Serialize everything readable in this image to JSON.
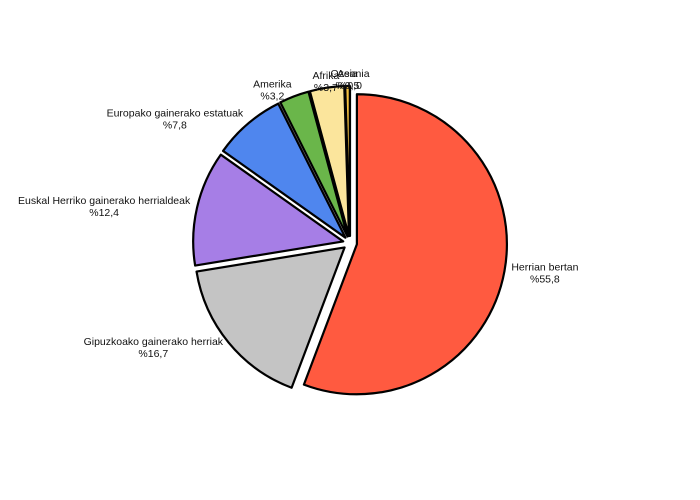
{
  "chart_data": {
    "type": "pie",
    "title": "",
    "slices": [
      {
        "label": "Herrian bertan",
        "value_text": "%55,8",
        "value": 55.8,
        "color": "#ff5a40"
      },
      {
        "label": "Gipuzkoako gainerako herriak",
        "value_text": "%16,7",
        "value": 16.7,
        "color": "#c4c4c4"
      },
      {
        "label": "Euskal Herriko gainerako herrialdeak",
        "value_text": "%12,4",
        "value": 12.4,
        "color": "#a67ee6"
      },
      {
        "label": "Europako gainerako estatuak",
        "value_text": "%7,8",
        "value": 7.8,
        "color": "#4f86ee"
      },
      {
        "label": "Amerika",
        "value_text": "%3,2",
        "value": 3.2,
        "color": "#6ab64a"
      },
      {
        "label": "Afrika",
        "value_text": "%3,7",
        "value": 3.7,
        "color": "#fbe59c"
      },
      {
        "label": "Asia",
        "value_text": "%0,5",
        "value": 0.5,
        "color": "#f4c040"
      },
      {
        "label": "Ozeania",
        "value_text": "%0,0",
        "value": 0.0,
        "color": "#ffffff"
      }
    ],
    "exploded": true,
    "legend": "none"
  }
}
